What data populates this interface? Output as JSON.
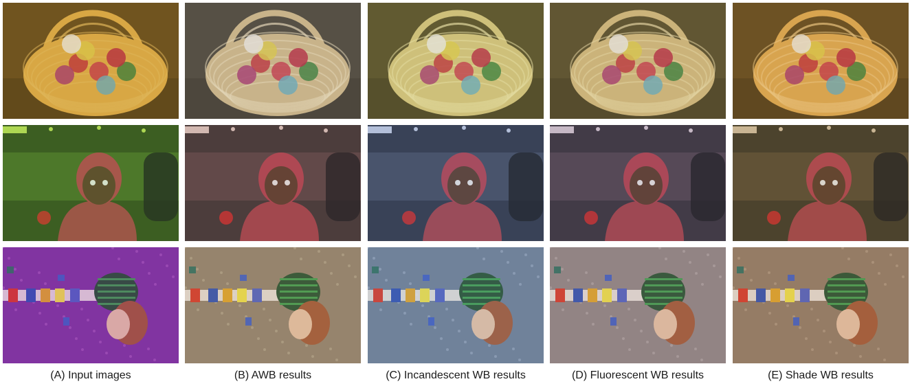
{
  "columns": [
    {
      "caption": "(A) Input images",
      "tints": [
        {
          "bg": "#5a4218",
          "tone": "#d8a845",
          "accent": "#e0b85c"
        },
        {
          "bg": "#2f4a1c",
          "tone": "#6faa3a",
          "accent": "#c0e45a"
        },
        {
          "bg": "#7a2f9a",
          "tone": "#a04cc0",
          "accent": "#d07ad8"
        }
      ]
    },
    {
      "caption": "(B) AWB results",
      "tints": [
        {
          "bg": "#3d3b36",
          "tone": "#c8b48a",
          "accent": "#e8dcc0"
        },
        {
          "bg": "#3a3233",
          "tone": "#8c6260",
          "accent": "#e6d0c8"
        },
        {
          "bg": "#8f7e68",
          "tone": "#b59f84",
          "accent": "#d8c8b0"
        }
      ]
    },
    {
      "caption": "(C) Incandescent WB results",
      "tints": [
        {
          "bg": "#4a4422",
          "tone": "#cfc07a",
          "accent": "#e8e0a8"
        },
        {
          "bg": "#2c3446",
          "tone": "#6a7896",
          "accent": "#c8d4ec"
        },
        {
          "bg": "#6a7a92",
          "tone": "#8ea4c0",
          "accent": "#c4d2e6"
        }
      ]
    },
    {
      "caption": "(D) Fluorescent WB results",
      "tints": [
        {
          "bg": "#4a4224",
          "tone": "#cbb47a",
          "accent": "#e6d8a8"
        },
        {
          "bg": "#33303a",
          "tone": "#7a6478",
          "accent": "#dcd0dc"
        },
        {
          "bg": "#8c8080",
          "tone": "#a89898",
          "accent": "#d4c8c8"
        }
      ]
    },
    {
      "caption": "(E) Shade WB results",
      "tints": [
        {
          "bg": "#56401c",
          "tone": "#d8a450",
          "accent": "#ecc888"
        },
        {
          "bg": "#3c3626",
          "tone": "#8a7048",
          "accent": "#dcc8a8"
        },
        {
          "bg": "#8e7660",
          "tone": "#b4987c",
          "accent": "#d8c0a4"
        }
      ]
    }
  ]
}
